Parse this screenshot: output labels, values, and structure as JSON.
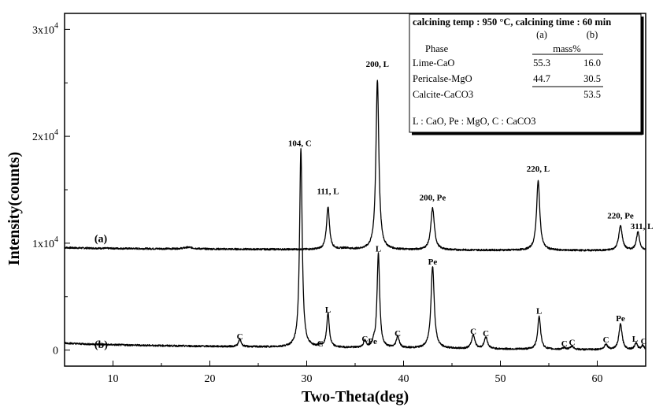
{
  "chart_data": {
    "type": "line",
    "xlabel": "Two-Theta(deg)",
    "ylabel": "Intensity(counts)",
    "xlim": [
      5,
      65
    ],
    "ylim": [
      -1500,
      31500
    ],
    "x_ticks": [
      {
        "value": 10,
        "label": "10"
      },
      {
        "value": 20,
        "label": "20"
      },
      {
        "value": 30,
        "label": "30"
      },
      {
        "value": 40,
        "label": "40"
      },
      {
        "value": 50,
        "label": "50"
      },
      {
        "value": 60,
        "label": "60"
      }
    ],
    "y_ticks": [
      {
        "value": 0,
        "base": "0",
        "exp": ""
      },
      {
        "value": 10000,
        "base": "1x10",
        "exp": "4"
      },
      {
        "value": 20000,
        "base": "2x10",
        "exp": "4"
      },
      {
        "value": 30000,
        "base": "3x10",
        "exp": "4"
      }
    ],
    "series": [
      {
        "name": "(a)",
        "label_x": 5.8,
        "label_y": 10400,
        "baseline_start": 9600,
        "baseline_end": 9300,
        "peaks": [
          {
            "x": 17.8,
            "y": 150,
            "w": 0.6
          },
          {
            "x": 32.2,
            "y": 4000,
            "w": 0.18
          },
          {
            "x": 34.0,
            "y": 120,
            "w": 0.5
          },
          {
            "x": 37.3,
            "y": 15900,
            "w": 0.18
          },
          {
            "x": 43.0,
            "y": 3900,
            "w": 0.22
          },
          {
            "x": 53.9,
            "y": 6500,
            "w": 0.2
          },
          {
            "x": 62.4,
            "y": 2300,
            "w": 0.22
          },
          {
            "x": 64.2,
            "y": 1700,
            "w": 0.2
          }
        ]
      },
      {
        "name": "(b)",
        "label_x": 5.8,
        "label_y": 500,
        "baseline_start": 700,
        "baseline_end": 0,
        "peaks": [
          {
            "x": 23.1,
            "y": 700,
            "w": 0.16
          },
          {
            "x": 29.4,
            "y": 18600,
            "w": 0.16
          },
          {
            "x": 31.4,
            "y": 150,
            "w": 0.16
          },
          {
            "x": 32.2,
            "y": 3200,
            "w": 0.16
          },
          {
            "x": 36.0,
            "y": 600,
            "w": 0.16
          },
          {
            "x": 36.9,
            "y": 400,
            "w": 0.14
          },
          {
            "x": 37.4,
            "y": 8900,
            "w": 0.16
          },
          {
            "x": 39.4,
            "y": 1100,
            "w": 0.18
          },
          {
            "x": 43.0,
            "y": 7700,
            "w": 0.2
          },
          {
            "x": 47.2,
            "y": 1300,
            "w": 0.2
          },
          {
            "x": 48.5,
            "y": 1100,
            "w": 0.2
          },
          {
            "x": 54.0,
            "y": 3100,
            "w": 0.18
          },
          {
            "x": 56.6,
            "y": 150,
            "w": 0.2
          },
          {
            "x": 57.4,
            "y": 300,
            "w": 0.2
          },
          {
            "x": 60.9,
            "y": 500,
            "w": 0.2
          },
          {
            "x": 62.4,
            "y": 2400,
            "w": 0.2
          },
          {
            "x": 64.0,
            "y": 600,
            "w": 0.18
          },
          {
            "x": 64.7,
            "y": 400,
            "w": 0.18
          }
        ]
      }
    ],
    "annotations": [
      {
        "text": "104, C",
        "x": 29.3,
        "y": 19100,
        "anchor": "middle"
      },
      {
        "text": "111, L",
        "x": 32.2,
        "y": 14600,
        "anchor": "middle"
      },
      {
        "text": "200, L",
        "x": 37.3,
        "y": 26500,
        "anchor": "middle"
      },
      {
        "text": "200, Pe",
        "x": 43.0,
        "y": 14000,
        "anchor": "middle"
      },
      {
        "text": "220, L",
        "x": 53.9,
        "y": 16700,
        "anchor": "middle"
      },
      {
        "text": "220, Pe",
        "x": 62.4,
        "y": 12300,
        "anchor": "middle"
      },
      {
        "text": "311, L",
        "x": 64.6,
        "y": 11300,
        "anchor": "middle"
      },
      {
        "text": "C",
        "x": 23.1,
        "y": 1000,
        "anchor": "middle"
      },
      {
        "text": "C",
        "x": 31.4,
        "y": 350,
        "anchor": "middle"
      },
      {
        "text": "L",
        "x": 32.2,
        "y": 3500,
        "anchor": "middle"
      },
      {
        "text": "C",
        "x": 36.0,
        "y": 800,
        "anchor": "middle"
      },
      {
        "text": "Pe",
        "x": 36.8,
        "y": 550,
        "anchor": "middle"
      },
      {
        "text": "L",
        "x": 37.4,
        "y": 9200,
        "anchor": "middle"
      },
      {
        "text": "C",
        "x": 39.4,
        "y": 1300,
        "anchor": "middle"
      },
      {
        "text": "Pe",
        "x": 43.0,
        "y": 8000,
        "anchor": "middle"
      },
      {
        "text": "C",
        "x": 47.2,
        "y": 1500,
        "anchor": "middle"
      },
      {
        "text": "C",
        "x": 48.5,
        "y": 1300,
        "anchor": "middle"
      },
      {
        "text": "L",
        "x": 54.0,
        "y": 3400,
        "anchor": "middle"
      },
      {
        "text": "C",
        "x": 56.6,
        "y": 350,
        "anchor": "middle"
      },
      {
        "text": "C",
        "x": 57.4,
        "y": 450,
        "anchor": "middle"
      },
      {
        "text": "C",
        "x": 60.9,
        "y": 700,
        "anchor": "middle"
      },
      {
        "text": "Pe",
        "x": 62.4,
        "y": 2700,
        "anchor": "middle"
      },
      {
        "text": "L",
        "x": 63.9,
        "y": 800,
        "anchor": "middle"
      },
      {
        "text": "C",
        "x": 64.8,
        "y": 550,
        "anchor": "middle"
      }
    ],
    "inset_table": {
      "title": "calcining temp : 950 °C, calcining time : 60 min",
      "col_headers": [
        "(a)",
        "(b)"
      ],
      "phase_header": "Phase",
      "unit_header": "mass%",
      "rows": [
        {
          "phase": "Lime-CaO",
          "a": "55.3",
          "b": "16.0"
        },
        {
          "phase": "Pericalse-MgO",
          "a": "44.7",
          "b": "30.5"
        },
        {
          "phase": "Calcite-CaCO3",
          "a": "",
          "b": "53.5"
        }
      ],
      "footnote": "L : CaO, Pe : MgO, C : CaCO3"
    }
  }
}
